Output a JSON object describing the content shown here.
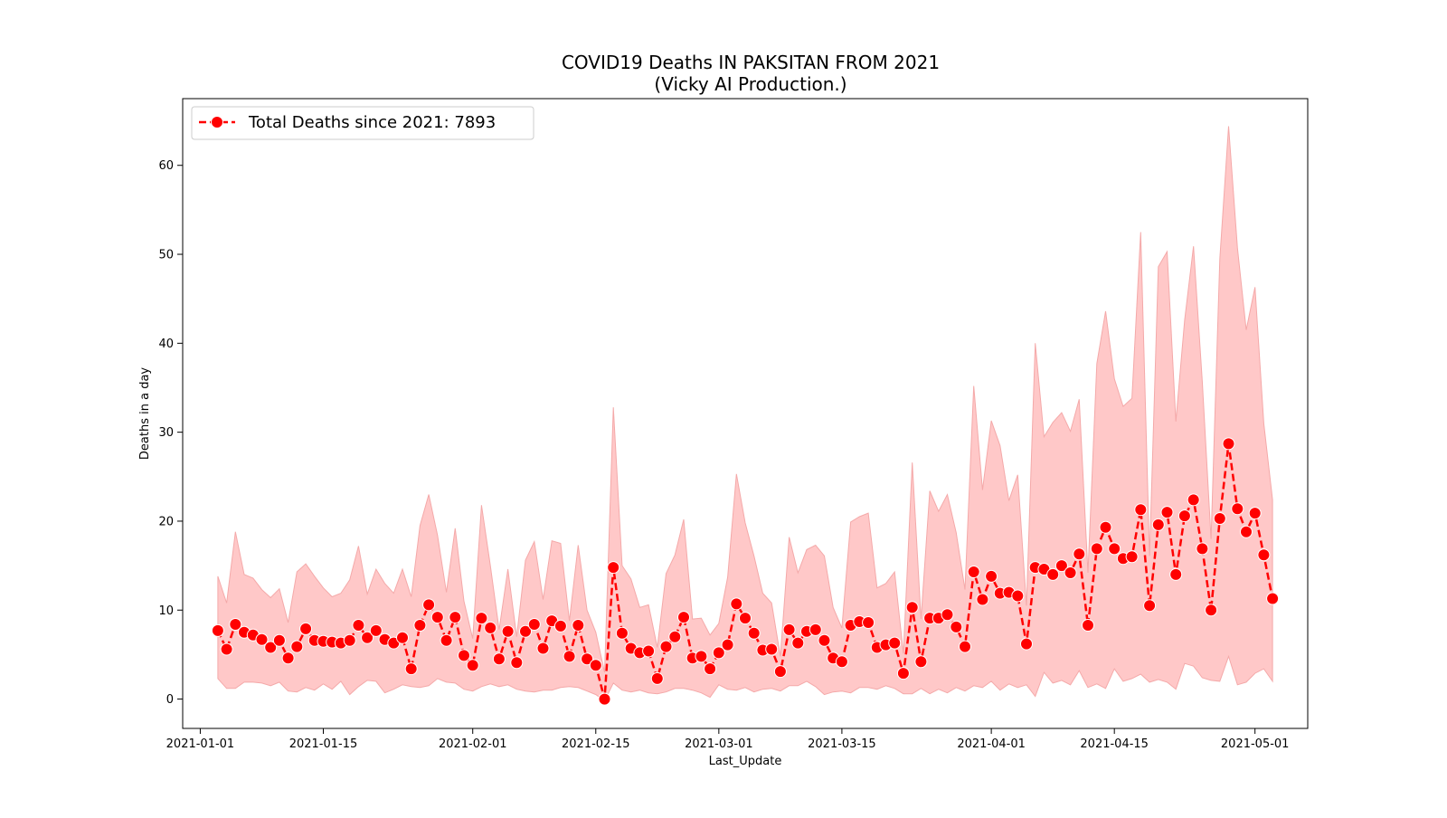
{
  "chart_data": {
    "type": "line",
    "title": "COVID19 Deaths IN PAKSITAN FROM 2021",
    "subtitle": "(Vicky AI Production.)",
    "xlabel": "Last_Update",
    "ylabel": "Deaths in a day",
    "x_start": "2021-01-03",
    "x_ticks": [
      "2021-01-01",
      "2021-01-15",
      "2021-02-01",
      "2021-02-15",
      "2021-03-01",
      "2021-03-15",
      "2021-04-01",
      "2021-04-15",
      "2021-05-01"
    ],
    "y_ticks": [
      0,
      10,
      20,
      30,
      40,
      50,
      60
    ],
    "xlim": [
      "2020-12-30",
      "2021-05-07"
    ],
    "ylim": [
      -3.3,
      67.5
    ],
    "grid": false,
    "legend": {
      "position": "top-left",
      "label": "Total Deaths since 2021: 7893"
    },
    "colors": {
      "line": "#ff0000",
      "band": "#ffc8c8",
      "band_edge": "#f4a9a9"
    },
    "series": [
      {
        "name": "Total Deaths since 2021: 7893",
        "values": [
          7.7,
          5.6,
          8.4,
          7.5,
          7.2,
          6.7,
          5.8,
          6.6,
          4.6,
          5.9,
          7.9,
          6.6,
          6.5,
          6.4,
          6.3,
          6.6,
          8.3,
          6.9,
          7.7,
          6.7,
          6.3,
          6.9,
          3.4,
          8.3,
          10.6,
          9.2,
          6.6,
          9.2,
          4.9,
          3.8,
          9.1,
          8.0,
          4.5,
          7.6,
          4.1,
          7.6,
          8.4,
          5.7,
          8.8,
          8.2,
          4.8,
          8.3,
          4.5,
          3.8,
          0.0,
          14.8,
          7.4,
          5.7,
          5.2,
          5.4,
          2.3,
          5.9,
          7.0,
          9.2,
          4.6,
          4.8,
          3.4,
          5.2,
          6.1,
          10.7,
          9.1,
          7.4,
          5.5,
          5.6,
          3.1,
          7.8,
          6.3,
          7.6,
          7.8,
          6.6,
          4.6,
          4.2,
          8.3,
          8.7,
          8.6,
          5.8,
          6.1,
          6.3,
          2.9,
          10.3,
          4.2,
          9.1,
          9.1,
          9.5,
          8.1,
          5.9,
          14.3,
          11.2,
          13.8,
          11.9,
          12.0,
          11.6,
          6.2,
          14.8,
          14.6,
          14.0,
          15.0,
          14.2,
          16.3,
          8.3,
          16.9,
          19.3,
          16.9,
          15.8,
          16.0,
          21.3,
          10.5,
          19.6,
          21.0,
          14.0,
          20.6,
          22.4,
          16.9,
          10.0,
          20.3,
          28.7,
          21.4,
          18.8,
          20.9,
          16.2,
          11.3
        ]
      }
    ],
    "band_upper": [
      13.8,
      10.8,
      18.8,
      14.0,
      13.6,
      12.3,
      11.4,
      12.4,
      8.6,
      14.3,
      15.2,
      13.8,
      12.5,
      11.5,
      11.9,
      13.4,
      17.2,
      11.8,
      14.6,
      13.0,
      11.9,
      14.6,
      11.5,
      19.5,
      23.0,
      18.4,
      12.0,
      19.2,
      11.0,
      6.8,
      21.8,
      15.0,
      7.8,
      14.6,
      7.0,
      15.6,
      17.7,
      11.2,
      17.8,
      17.5,
      8.8,
      17.3,
      10.0,
      7.5,
      3.0,
      32.8,
      15.0,
      13.5,
      10.3,
      10.6,
      5.8,
      14.1,
      16.2,
      20.2,
      9.0,
      9.1,
      7.2,
      8.5,
      13.7,
      25.3,
      19.8,
      16.1,
      11.9,
      10.8,
      4.8,
      18.2,
      14.2,
      16.8,
      17.3,
      16.1,
      10.3,
      8.0,
      19.9,
      20.5,
      20.9,
      12.5,
      13.0,
      14.3,
      5.1,
      26.6,
      9.0,
      23.4,
      21.1,
      23.0,
      18.7,
      12.3,
      35.2,
      23.5,
      31.3,
      28.5,
      22.3,
      25.2,
      10.5,
      40.0,
      29.5,
      31.1,
      32.2,
      30.1,
      33.7,
      14.2,
      37.7,
      43.6,
      36.0,
      32.9,
      33.8,
      52.5,
      16.1,
      48.6,
      50.3,
      31.2,
      42.6,
      50.9,
      35.7,
      18.0,
      49.5,
      64.4,
      50.7,
      41.5,
      46.3,
      31.0,
      22.4
    ],
    "band_lower": [
      2.3,
      1.2,
      1.2,
      1.9,
      1.9,
      1.8,
      1.5,
      1.9,
      0.9,
      0.8,
      1.3,
      1.0,
      1.7,
      1.1,
      2.0,
      0.5,
      1.4,
      2.1,
      2.0,
      0.7,
      1.1,
      1.6,
      1.4,
      1.3,
      1.5,
      2.3,
      1.9,
      1.8,
      1.1,
      0.9,
      1.4,
      1.7,
      1.4,
      1.6,
      1.1,
      0.9,
      0.8,
      1.0,
      1.0,
      1.3,
      1.4,
      1.3,
      0.9,
      0.5,
      -0.2,
      1.8,
      1.0,
      0.8,
      1.0,
      0.7,
      0.6,
      0.8,
      1.2,
      1.2,
      1.0,
      0.7,
      0.2,
      1.6,
      1.1,
      1.0,
      1.3,
      0.8,
      1.1,
      1.2,
      0.9,
      1.5,
      1.5,
      2.0,
      1.4,
      0.5,
      0.8,
      0.9,
      0.7,
      1.3,
      1.3,
      1.1,
      1.5,
      1.2,
      0.6,
      0.6,
      1.2,
      0.6,
      1.1,
      0.7,
      1.3,
      0.9,
      1.5,
      1.3,
      2.0,
      1.0,
      1.7,
      1.3,
      1.6,
      0.3,
      3.0,
      1.8,
      2.1,
      1.6,
      3.2,
      1.3,
      1.7,
      1.2,
      3.4,
      2.0,
      2.3,
      2.8,
      1.9,
      2.2,
      1.9,
      1.1,
      4.0,
      3.7,
      2.4,
      2.1,
      2.0,
      4.8,
      1.6,
      1.9,
      2.9,
      3.4,
      2.0
    ]
  }
}
